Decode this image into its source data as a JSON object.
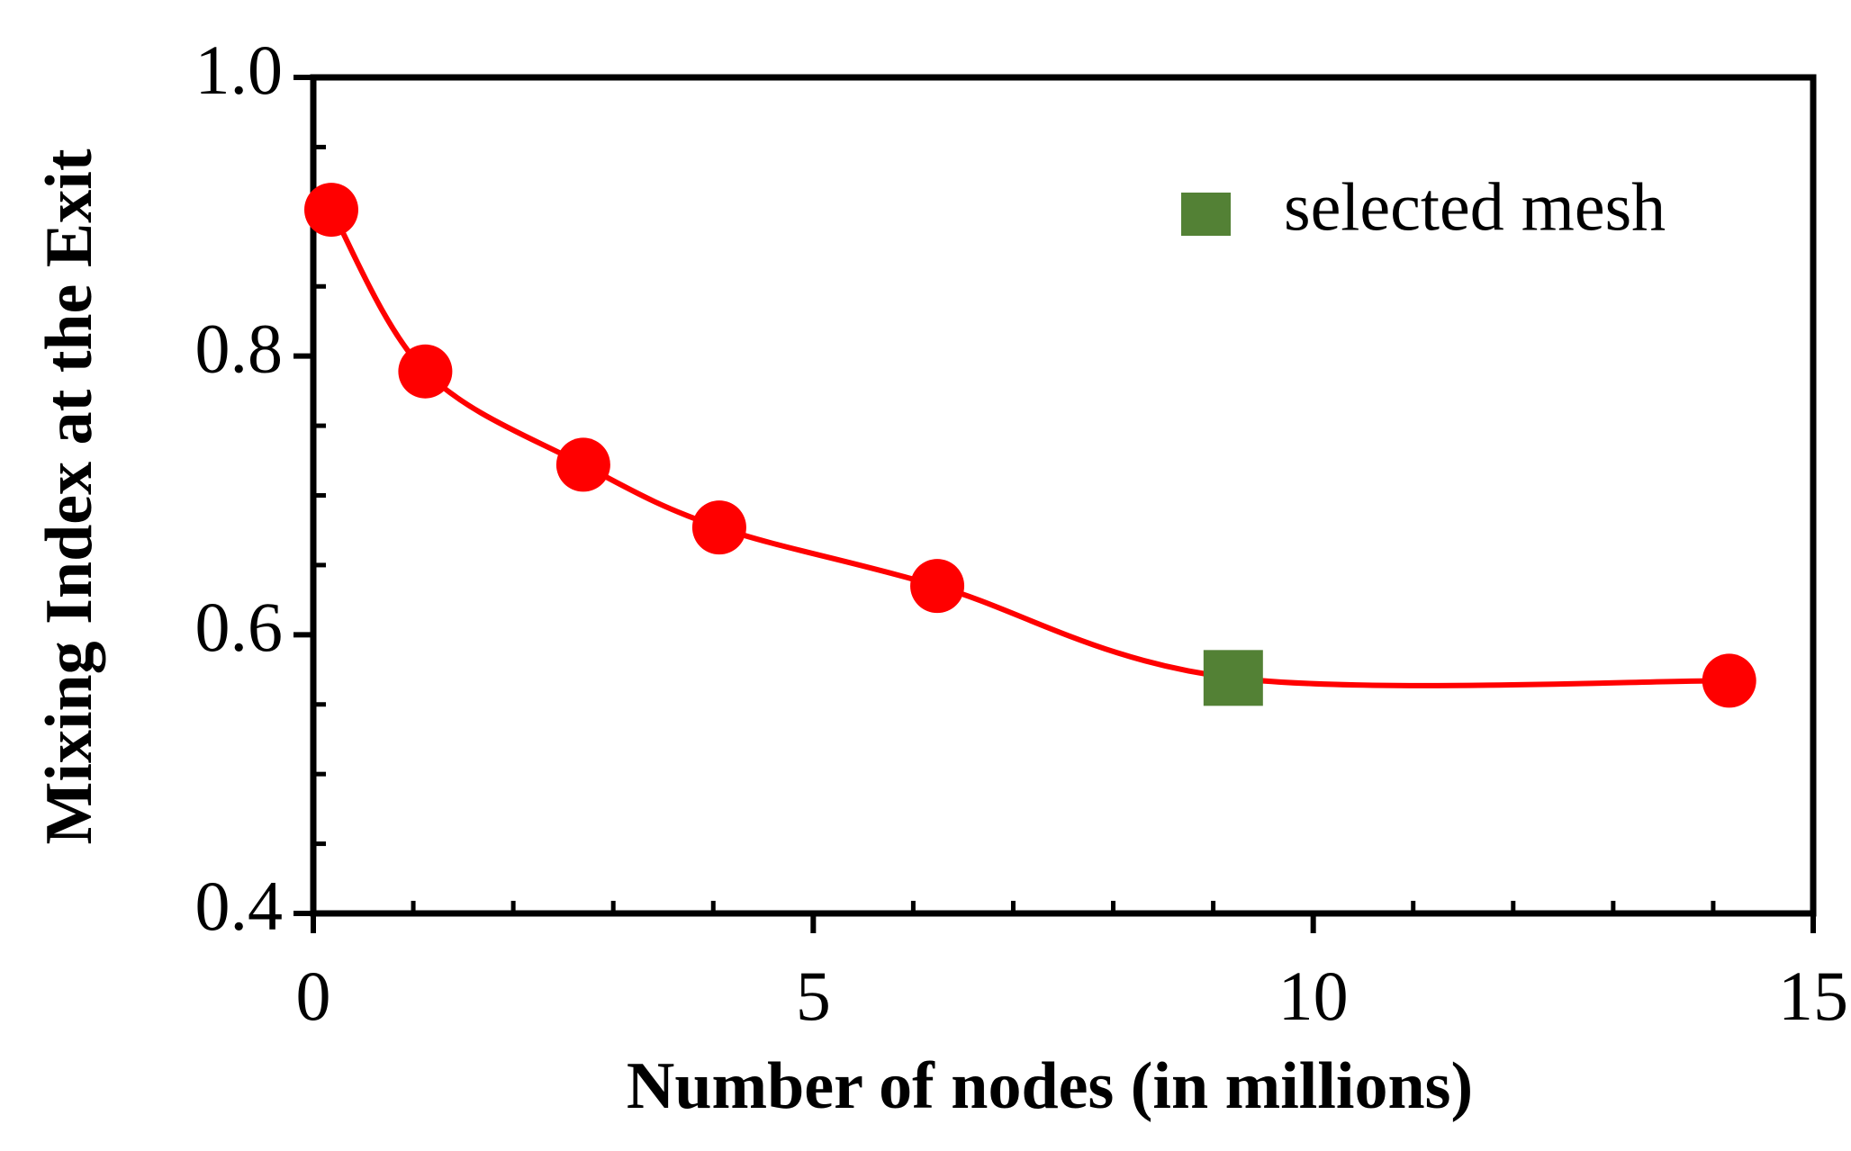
{
  "chart_data": {
    "type": "line",
    "xlabel": "Number of nodes (in millions)",
    "ylabel": "Mixing Index at the Exit",
    "series": [
      {
        "color": "#ff0000",
        "marker": "circle",
        "smooth": true,
        "x": [
          0.18,
          1.12,
          2.7,
          4.06,
          6.24,
          9.2,
          14.16
        ],
        "values": [
          0.905,
          0.789,
          0.722,
          0.677,
          0.635,
          0.569,
          0.567
        ]
      },
      {
        "name": "selected mesh",
        "color": "#538135",
        "marker": "square",
        "x": [
          9.2
        ],
        "values": [
          0.569
        ]
      }
    ],
    "xlim": [
      0,
      15
    ],
    "xticks": [
      0,
      5,
      10,
      15
    ],
    "xminorticks": [
      1,
      2,
      3,
      4,
      6,
      7,
      8,
      9,
      11,
      12,
      13,
      14
    ],
    "ylim": [
      0.4,
      1.0
    ],
    "yticks": [
      0.4,
      0.6,
      0.8,
      {
        "value": 1.0,
        "label": "1.0"
      }
    ],
    "yminorticks": [
      0.45,
      0.5,
      0.55,
      0.65,
      0.7,
      0.75,
      0.85,
      0.9,
      0.95
    ],
    "legend": "upper right"
  }
}
